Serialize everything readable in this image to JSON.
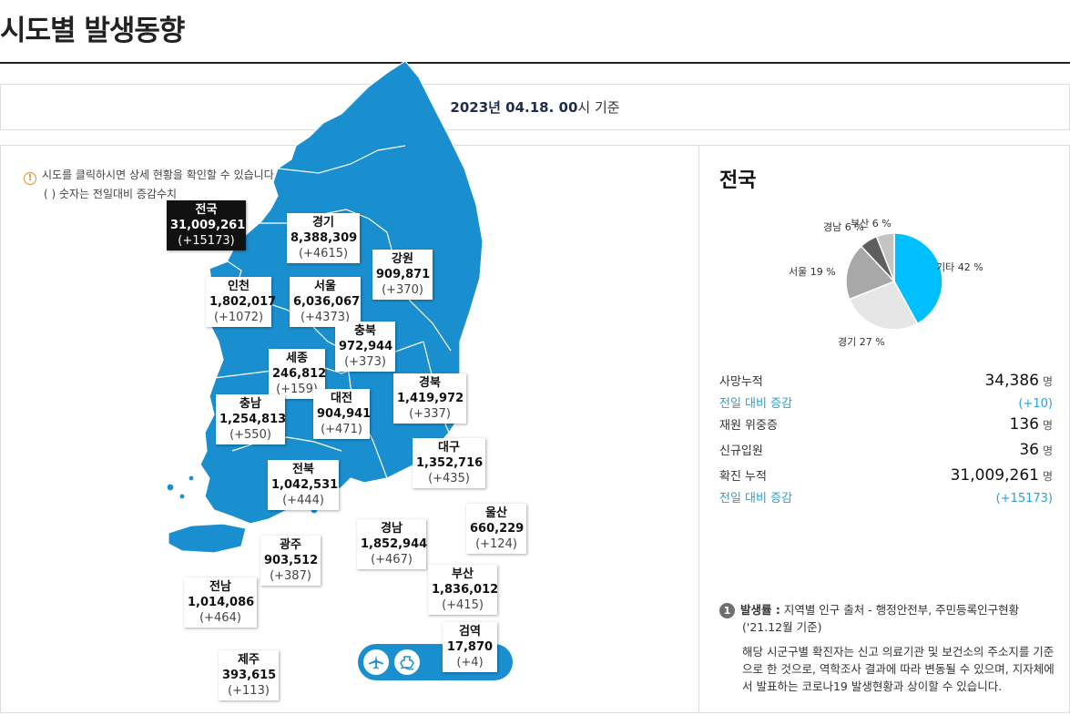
{
  "header": {
    "title": "시도별 발생동향"
  },
  "basis": {
    "date": "2023년 04.18. 00",
    "suffix": "시 기준"
  },
  "notice": {
    "icon": "info-icon",
    "line1": "시도를 클릭하시면 상세 현황을 확인할 수 있습니다.",
    "line2": "( ) 숫자는 전일대비 증감수치"
  },
  "regions": [
    {
      "key": "national",
      "name": "전국",
      "total": "31,009,261",
      "delta": "(+15173)",
      "active": true
    },
    {
      "key": "gyeonggi",
      "name": "경기",
      "total": "8,388,309",
      "delta": "(+4615)"
    },
    {
      "key": "gangwon",
      "name": "강원",
      "total": "909,871",
      "delta": "(+370)"
    },
    {
      "key": "incheon",
      "name": "인천",
      "total": "1,802,017",
      "delta": "(+1072)"
    },
    {
      "key": "seoul",
      "name": "서울",
      "total": "6,036,067",
      "delta": "(+4373)"
    },
    {
      "key": "chungbuk",
      "name": "충북",
      "total": "972,944",
      "delta": "(+373)"
    },
    {
      "key": "sejong",
      "name": "세종",
      "total": "246,812",
      "delta": "(+159)"
    },
    {
      "key": "daejeon",
      "name": "대전",
      "total": "904,941",
      "delta": "(+471)"
    },
    {
      "key": "gyeongbuk",
      "name": "경북",
      "total": "1,419,972",
      "delta": "(+337)"
    },
    {
      "key": "chungnam",
      "name": "충남",
      "total": "1,254,813",
      "delta": "(+550)"
    },
    {
      "key": "daegu",
      "name": "대구",
      "total": "1,352,716",
      "delta": "(+435)"
    },
    {
      "key": "jeonbuk",
      "name": "전북",
      "total": "1,042,531",
      "delta": "(+444)"
    },
    {
      "key": "ulsan",
      "name": "울산",
      "total": "660,229",
      "delta": "(+124)"
    },
    {
      "key": "gyeongnam",
      "name": "경남",
      "total": "1,852,944",
      "delta": "(+467)"
    },
    {
      "key": "gwangju",
      "name": "광주",
      "total": "903,512",
      "delta": "(+387)"
    },
    {
      "key": "busan",
      "name": "부산",
      "total": "1,836,012",
      "delta": "(+415)"
    },
    {
      "key": "jeonnam",
      "name": "전남",
      "total": "1,014,086",
      "delta": "(+464)"
    },
    {
      "key": "quarantine",
      "name": "검역",
      "total": "17,870",
      "delta": "(+4)"
    },
    {
      "key": "jeju",
      "name": "제주",
      "total": "393,615",
      "delta": "(+113)"
    }
  ],
  "quarantine_icons": [
    "airplane-icon",
    "ship-icon"
  ],
  "summary": {
    "title": "전국",
    "pie": {
      "slices": [
        {
          "name": "기타",
          "pct": 42,
          "label": "기타 42 %",
          "color": "#00bfff"
        },
        {
          "name": "경기",
          "pct": 27,
          "label": "경기 27 %",
          "color": "#e6e6e6"
        },
        {
          "name": "서울",
          "pct": 19,
          "label": "서울 19 %",
          "color": "#a8a8a8"
        },
        {
          "name": "경남",
          "pct": 6,
          "label": "경남 6 %",
          "color": "#5e5e5e"
        },
        {
          "name": "부산",
          "pct": 6,
          "label": "부산 6 %",
          "color": "#c4c4c4"
        }
      ]
    },
    "stats": {
      "deaths_label": "사망누적",
      "deaths_value": "34,386",
      "deaths_unit": "명",
      "deaths_delta_label": "전일 대비 증감",
      "deaths_delta": "(+10)",
      "critical_label": "재원 위중증",
      "critical_value": "136",
      "critical_unit": "명",
      "admitted_label": "신규입원",
      "admitted_value": "36",
      "admitted_unit": "명",
      "confirmed_label": "확진 누적",
      "confirmed_value": "31,009,261",
      "confirmed_unit": "명",
      "confirmed_delta_label": "전일 대비 증감",
      "confirmed_delta": "(+15173)"
    }
  },
  "footnote": {
    "num": "1",
    "label": "발생률 :",
    "source": " 지역별 인구 출처 - 행정안전부, 주민등록인구현황",
    "date": "('21.12월 기준)",
    "para": "해당 시군구별 확진자는 신고 의료기관 및 보건소의 주소지를 기준으로 한 것으로, 역학조사 결과에 따라 변동될 수 있으며, 지자체에서 발표하는 코로나19 발생현황과 상이할 수 있습니다."
  }
}
